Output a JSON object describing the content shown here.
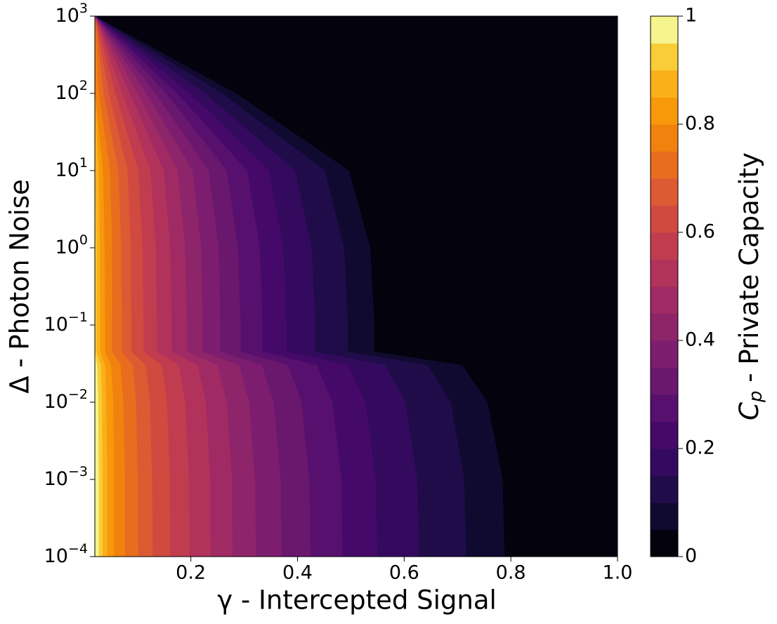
{
  "chart_data": {
    "type": "contour",
    "xlabel": "γ - Intercepted Signal",
    "ylabel": "Δ - Photon Noise",
    "colorbar_label_symbol": "C",
    "colorbar_label_subscript": "p",
    "colorbar_label_text": " - Private Capacity",
    "xlim": [
      0.02,
      1
    ],
    "xticks": [
      0.2,
      0.4,
      0.6,
      0.8,
      {
        "value": 1,
        "label": "1.0"
      }
    ],
    "ylim": [
      0.0001,
      1000
    ],
    "log_y": true,
    "yticks": [
      {
        "value": 0.0001,
        "label": "10",
        "exponent": "−4"
      },
      {
        "value": 0.001,
        "label": "10",
        "exponent": "−3"
      },
      {
        "value": 0.01,
        "label": "10",
        "exponent": "−2"
      },
      {
        "value": 0.1,
        "label": "10",
        "exponent": "−1"
      },
      {
        "value": 1,
        "label": "10",
        "exponent": "0"
      },
      {
        "value": 10,
        "label": "10",
        "exponent": "1"
      },
      {
        "value": 100,
        "label": "10",
        "exponent": "2"
      },
      {
        "value": 1000,
        "label": "10",
        "exponent": "3"
      }
    ],
    "clim": [
      0,
      1
    ],
    "cticks": [
      0,
      0.2,
      0.4,
      0.6,
      0.8,
      1
    ],
    "colors": [
      "#03020d",
      "#110a30",
      "#210c4a",
      "#340a5f",
      "#450a69",
      "#57106e",
      "#6a176e",
      "#7c1d6f",
      "#8e2469",
      "#a02a63",
      "#b1325a",
      "#c23c4f",
      "#d14a40",
      "#de5a32",
      "#e86d1f",
      "#f1820e",
      "#f7990a",
      "#fab01b",
      "#f8cd37",
      "#f5f48d"
    ],
    "deltas": [
      0.0001,
      0.001,
      0.01,
      0.03,
      0.045,
      0.1,
      1,
      10,
      100,
      1000
    ],
    "contours": [
      {
        "level": 0.05,
        "gamma": [
          0.788,
          0.784,
          0.756,
          0.709,
          0.544,
          0.544,
          0.536,
          0.496,
          0.284,
          0.02
        ]
      },
      {
        "level": 0.1,
        "gamma": [
          0.716,
          0.712,
          0.687,
          0.644,
          0.494,
          0.494,
          0.487,
          0.451,
          0.258,
          0.02
        ]
      },
      {
        "level": 0.15,
        "gamma": [
          0.627,
          0.624,
          0.602,
          0.564,
          0.433,
          0.433,
          0.426,
          0.395,
          0.226,
          0.02
        ]
      },
      {
        "level": 0.2,
        "gamma": [
          0.549,
          0.546,
          0.527,
          0.494,
          0.379,
          0.379,
          0.373,
          0.346,
          0.198,
          0.02
        ]
      },
      {
        "level": 0.25,
        "gamma": [
          0.484,
          0.482,
          0.465,
          0.436,
          0.334,
          0.334,
          0.329,
          0.305,
          0.174,
          0.02
        ]
      },
      {
        "level": 0.3,
        "gamma": [
          0.424,
          0.422,
          0.407,
          0.382,
          0.293,
          0.293,
          0.288,
          0.267,
          0.153,
          0.02
        ]
      },
      {
        "level": 0.35,
        "gamma": [
          0.37,
          0.368,
          0.355,
          0.333,
          0.255,
          0.255,
          0.252,
          0.233,
          0.133,
          0.02
        ]
      },
      {
        "level": 0.4,
        "gamma": [
          0.322,
          0.32,
          0.309,
          0.29,
          0.222,
          0.222,
          0.219,
          0.203,
          0.116,
          0.02
        ]
      },
      {
        "level": 0.45,
        "gamma": [
          0.278,
          0.277,
          0.267,
          0.25,
          0.192,
          0.192,
          0.189,
          0.175,
          0.1,
          0.02
        ]
      },
      {
        "level": 0.5,
        "gamma": [
          0.237,
          0.236,
          0.228,
          0.213,
          0.164,
          0.164,
          0.161,
          0.149,
          0.085,
          0.02
        ]
      },
      {
        "level": 0.55,
        "gamma": [
          0.197,
          0.196,
          0.189,
          0.177,
          0.136,
          0.136,
          0.134,
          0.124,
          0.071,
          0.02
        ]
      },
      {
        "level": 0.6,
        "gamma": [
          0.161,
          0.16,
          0.155,
          0.145,
          0.111,
          0.111,
          0.109,
          0.101,
          0.058,
          0.02
        ]
      },
      {
        "level": 0.65,
        "gamma": [
          0.128,
          0.127,
          0.123,
          0.115,
          0.088,
          0.088,
          0.087,
          0.081,
          0.046,
          0.02
        ]
      },
      {
        "level": 0.7,
        "gamma": [
          0.101,
          0.1,
          0.097,
          0.091,
          0.07,
          0.07,
          0.069,
          0.064,
          0.036,
          0.02
        ]
      },
      {
        "level": 0.75,
        "gamma": [
          0.076,
          0.076,
          0.073,
          0.068,
          0.052,
          0.052,
          0.052,
          0.048,
          0.027,
          0.02
        ]
      },
      {
        "level": 0.8,
        "gamma": [
          0.056,
          0.056,
          0.054,
          0.05,
          0.039,
          0.039,
          0.038,
          0.035,
          0.02,
          0.02
        ]
      },
      {
        "level": 0.85,
        "gamma": [
          0.043,
          0.043,
          0.041,
          0.039,
          0.03,
          0.03,
          0.029,
          0.027,
          0.02,
          0.02
        ]
      },
      {
        "level": 0.9,
        "gamma": [
          0.034,
          0.034,
          0.033,
          0.031,
          0.023,
          0.023,
          0.023,
          0.021,
          0.02,
          0.02
        ]
      },
      {
        "level": 0.95,
        "gamma": [
          0.027,
          0.027,
          0.026,
          0.024,
          0.02,
          0.02,
          0.02,
          0.02,
          0.02,
          0.02
        ]
      }
    ]
  }
}
